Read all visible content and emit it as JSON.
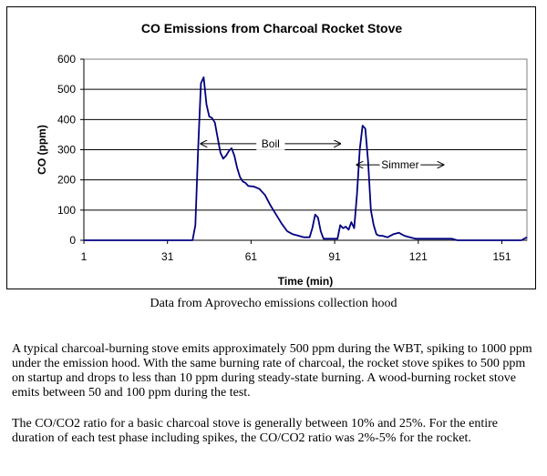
{
  "chart_data": {
    "type": "line",
    "title": "CO Emissions from Charcoal Rocket Stove",
    "xlabel": "Time (min)",
    "ylabel": "CO (ppm)",
    "xlim": [
      1,
      160
    ],
    "ylim": [
      0,
      600
    ],
    "x_ticks": [
      1,
      31,
      61,
      91,
      121,
      151
    ],
    "y_ticks": [
      0,
      100,
      200,
      300,
      400,
      500,
      600
    ],
    "grid": true,
    "legend": "none",
    "line_color": "#000080",
    "series": [
      {
        "x": [
          1,
          30,
          40,
          41,
          42,
          43,
          44,
          45,
          46,
          47,
          48,
          49,
          50,
          51,
          52,
          53,
          54,
          55,
          56,
          57,
          58,
          59,
          60,
          62,
          64,
          66,
          68,
          70,
          72,
          74,
          76,
          78,
          80,
          82,
          83,
          84,
          85,
          86,
          87,
          88,
          89,
          90,
          91,
          92,
          93,
          94,
          95,
          96,
          97,
          98,
          99,
          100,
          101,
          102,
          103,
          104,
          105,
          106,
          107,
          108,
          110,
          112,
          114,
          116,
          118,
          120,
          122,
          125,
          130,
          133,
          135,
          137,
          140,
          150,
          158,
          160
        ],
        "values": [
          0,
          0,
          0,
          50,
          300,
          520,
          540,
          450,
          410,
          405,
          390,
          340,
          290,
          270,
          280,
          295,
          305,
          280,
          240,
          210,
          195,
          190,
          180,
          178,
          170,
          150,
          115,
          85,
          55,
          30,
          20,
          15,
          10,
          10,
          40,
          85,
          75,
          30,
          5,
          5,
          5,
          5,
          5,
          5,
          50,
          40,
          45,
          35,
          60,
          40,
          150,
          300,
          380,
          370,
          260,
          100,
          50,
          20,
          15,
          15,
          10,
          20,
          25,
          15,
          10,
          5,
          5,
          5,
          5,
          5,
          0,
          0,
          0,
          0,
          0,
          10
        ]
      }
    ],
    "annotations": [
      {
        "text": "Boil",
        "x_from": 43,
        "x_to": 93,
        "y": 320
      },
      {
        "text": "Simmer",
        "x_from": 99,
        "x_to": 130,
        "y": 250
      }
    ]
  },
  "caption": "Data from Aprovecho emissions collection hood",
  "paragraphs": [
    "A typical charcoal-burning stove emits approximately 500 ppm during the WBT, spiking to 1000 ppm under the emission hood.  With the same burning rate of charcoal, the rocket stove spikes to 500 ppm on startup and drops to less than 10 ppm during steady-state burning.  A wood-burning rocket stove emits between 50 and 100 ppm during the test.",
    "The CO/CO2 ratio for a basic charcoal stove is generally between 10% and 25%.  For the entire duration of each test phase including spikes, the CO/CO2 ratio was 2%-5% for the rocket."
  ]
}
